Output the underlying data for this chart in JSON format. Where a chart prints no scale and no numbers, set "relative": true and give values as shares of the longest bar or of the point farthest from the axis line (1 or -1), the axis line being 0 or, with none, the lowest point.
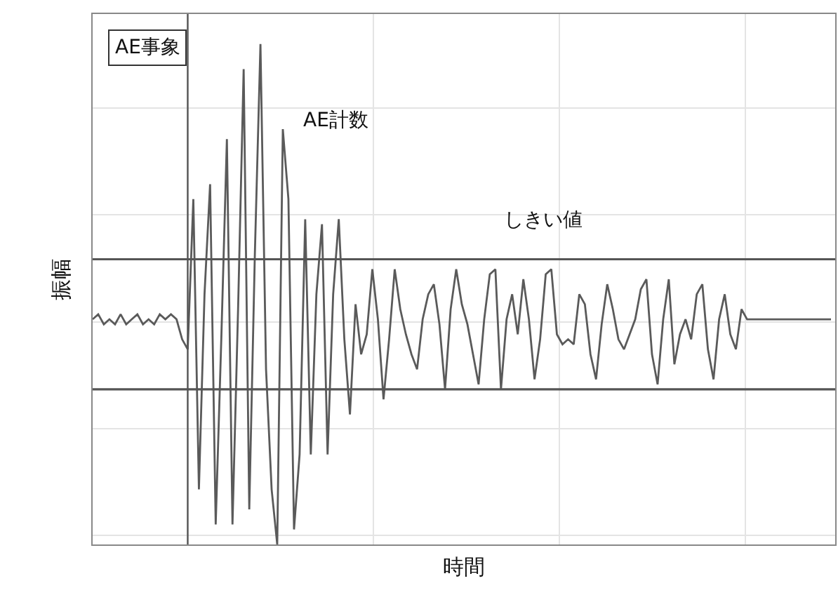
{
  "chart_data": {
    "type": "line",
    "relative": true,
    "xlabel": "時間",
    "ylabel": "振幅",
    "annotations": [
      "AE事象",
      "AE計数",
      "しきい値"
    ],
    "categories": [
      null,
      null,
      null,
      null,
      null,
      null,
      null,
      null,
      null,
      null,
      null,
      null,
      null,
      null,
      null,
      null,
      null,
      null,
      null,
      null,
      null,
      null,
      null,
      null,
      null,
      null,
      null,
      null,
      null,
      null,
      null,
      null,
      null,
      null,
      null,
      null,
      null,
      null,
      null,
      null,
      null,
      null,
      null,
      null,
      null,
      null,
      null,
      null,
      null,
      null,
      null,
      null,
      null,
      null,
      null,
      null,
      null,
      null,
      null,
      null,
      null,
      null,
      null,
      null,
      null,
      null,
      null,
      null,
      null,
      null,
      null,
      null,
      null,
      null,
      null,
      null,
      null,
      null,
      null,
      null,
      null,
      null,
      null,
      null,
      null,
      null,
      null,
      null,
      null,
      null,
      null,
      null,
      null,
      null,
      null,
      null,
      null,
      null,
      null,
      null,
      null,
      null,
      null,
      null,
      null,
      null,
      null,
      null,
      null,
      null,
      null,
      null,
      null,
      null,
      null,
      null,
      null,
      null,
      null,
      null,
      null,
      null,
      null,
      null,
      null,
      null,
      null,
      null,
      null,
      null,
      null,
      null,
      null
    ],
    "series": [
      {
        "color": "#5a5a5a",
        "values": [
          0.45,
          0.46,
          0.44,
          0.45,
          0.44,
          0.46,
          0.44,
          0.45,
          0.46,
          0.44,
          0.45,
          0.44,
          0.46,
          0.45,
          0.46,
          0.45,
          0.41,
          0.39,
          0.69,
          0.11,
          0.5,
          0.72,
          0.04,
          0.41,
          0.81,
          0.04,
          0.47,
          0.95,
          0.07,
          0.58,
          1,
          0.35,
          0.11,
          0,
          0.83,
          0.69,
          0.03,
          0.18,
          0.65,
          0.18,
          0.5,
          0.64,
          0.18,
          0.5,
          0.65,
          0.41,
          0.26,
          0.48,
          0.38,
          0.42,
          0.55,
          0.45,
          0.29,
          0.41,
          0.55,
          0.47,
          0.42,
          0.38,
          0.35,
          0.45,
          0.5,
          0.52,
          0.44,
          0.31,
          0.47,
          0.55,
          0.48,
          0.44,
          0.38,
          0.32,
          0.45,
          0.54,
          0.55,
          0.31,
          0.45,
          0.5,
          0.42,
          0.53,
          0.45,
          0.33,
          0.41,
          0.54,
          0.55,
          0.42,
          0.4,
          0.41,
          0.4,
          0.5,
          0.48,
          0.38,
          0.33,
          0.44,
          0.52,
          0.47,
          0.41,
          0.39,
          0.42,
          0.45,
          0.51,
          0.53,
          0.38,
          0.32,
          0.45,
          0.53,
          0.36,
          0.42,
          0.45,
          0.41,
          0.5,
          0.52,
          0.39,
          0.33,
          0.45,
          0.5,
          0.42,
          0.39,
          0.47,
          0.45,
          0.45,
          0.45,
          0.45,
          0.45,
          0.45,
          0.45,
          0.45,
          0.45,
          0.45,
          0.45,
          0.45,
          0.45,
          0.45,
          0.45,
          0.45
        ]
      }
    ],
    "ref_lines": [
      {
        "axis": "y",
        "value": 0.57,
        "color": "#555555"
      },
      {
        "axis": "y",
        "value": 0.31,
        "color": "#555555"
      }
    ],
    "grid": true,
    "marker": "none",
    "line_style": "solid"
  }
}
